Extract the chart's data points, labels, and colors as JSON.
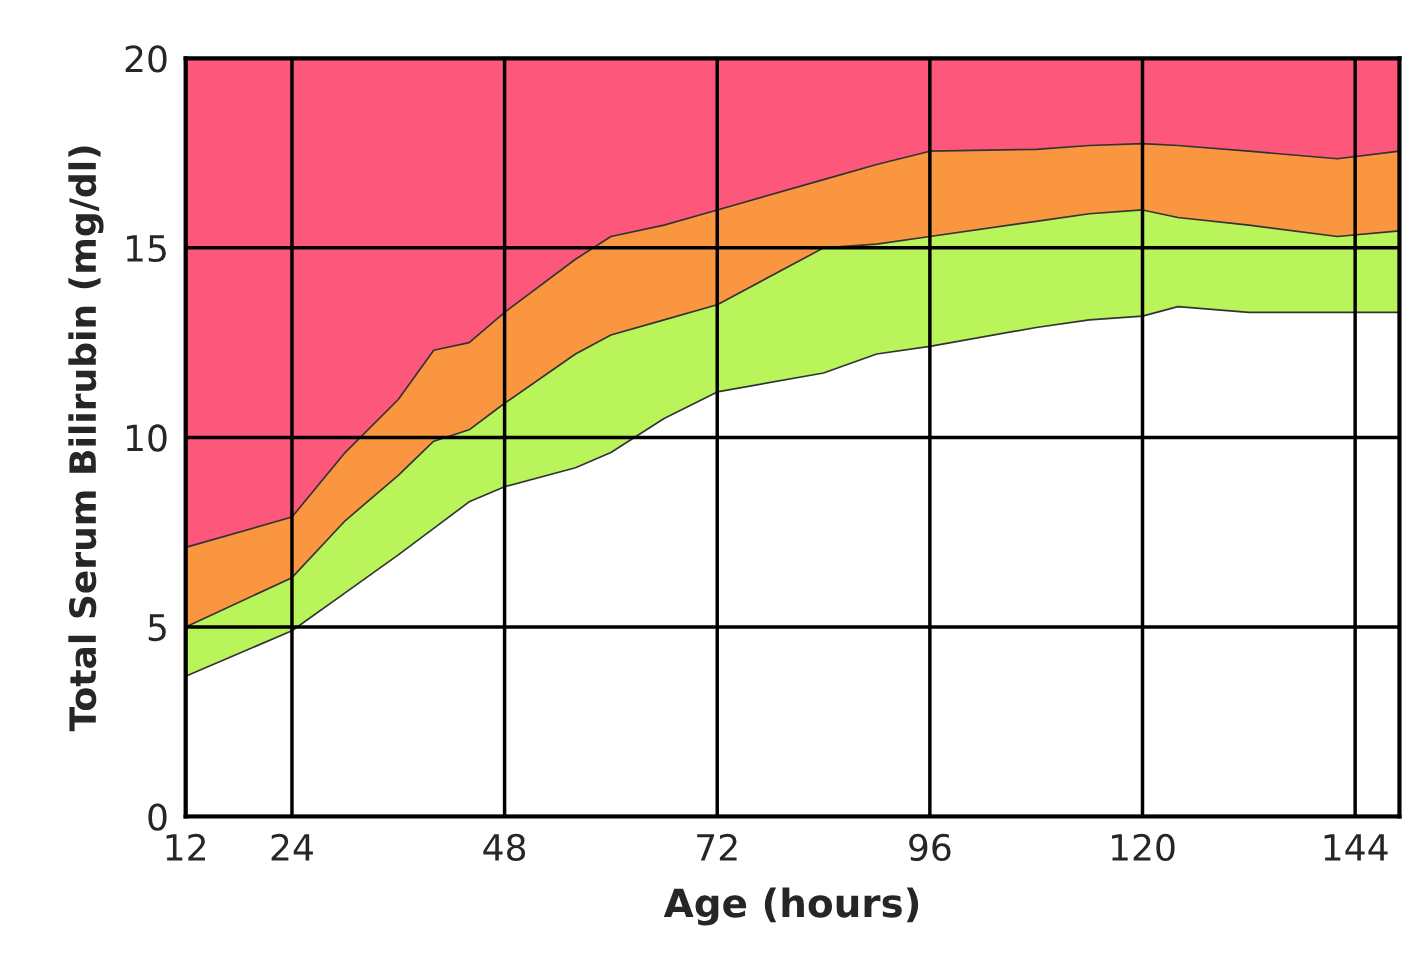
{
  "chart_data": {
    "type": "area",
    "stacked": true,
    "xlabel": "Age (hours)",
    "ylabel": "Total Serum Bilirubin (mg/dl)",
    "x": [
      12,
      24,
      30,
      36,
      40,
      44,
      48,
      56,
      60,
      66,
      72,
      84,
      90,
      96,
      108,
      114,
      120,
      124,
      132,
      142,
      149
    ],
    "series": [
      {
        "color": "#ffffff",
        "values": [
          3.7,
          4.9,
          5.9,
          6.9,
          7.6,
          8.3,
          8.7,
          9.2,
          9.6,
          10.5,
          11.2,
          11.7,
          12.2,
          12.4,
          12.9,
          13.1,
          13.2,
          13.45,
          13.3,
          13.3,
          13.3
        ]
      },
      {
        "color": "#b9f55a",
        "values": [
          1.3,
          1.4,
          1.9,
          2.1,
          2.3,
          1.9,
          2.2,
          3.0,
          3.1,
          2.6,
          2.3,
          3.3,
          2.9,
          2.9,
          2.8,
          2.8,
          2.8,
          2.35,
          2.3,
          2.0,
          2.15
        ]
      },
      {
        "color": "#fb9640",
        "values": [
          2.1,
          1.6,
          1.8,
          2.0,
          2.4,
          2.3,
          2.4,
          2.5,
          2.6,
          2.5,
          2.5,
          1.8,
          2.1,
          2.25,
          1.9,
          1.8,
          1.75,
          1.9,
          1.95,
          2.05,
          2.1
        ]
      },
      {
        "color": "#fd577c",
        "values": [
          12.9,
          12.1,
          10.4,
          9.0,
          7.7,
          7.5,
          6.7,
          5.3,
          4.7,
          4.4,
          4.0,
          3.2,
          2.8,
          2.45,
          2.4,
          2.3,
          2.25,
          2.3,
          2.45,
          2.65,
          2.45
        ]
      }
    ],
    "xlim": [
      12,
      149
    ],
    "ylim": [
      0,
      20
    ],
    "xticks": [
      12,
      24,
      48,
      72,
      96,
      120,
      144
    ],
    "yticks": [
      0,
      5,
      10,
      15,
      20
    ],
    "grid": true
  }
}
